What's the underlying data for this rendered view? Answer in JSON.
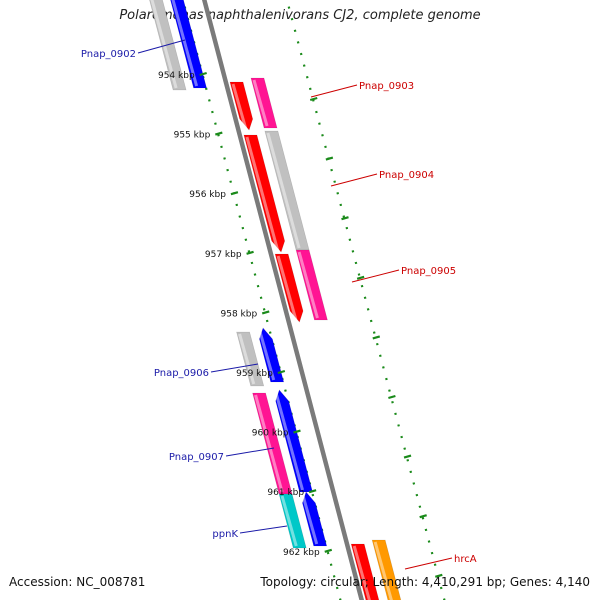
{
  "title": "Polaromonas naphthalenivorans CJ2, complete genome",
  "accession": "Accession: NC_008781",
  "summary": "Topology: circular; Length: 4,410,291 bp; Genes: 4,140",
  "colors": {
    "backbone": "#7a7a7a",
    "scale": "#1a8a1a",
    "label_left": "#1a1aa8",
    "label_right": "#cc0000",
    "red": "#ff0000",
    "pink": "#ff1493",
    "gray": "#c0c0c0",
    "blue": "#0000ff",
    "cyan": "#00c8c8",
    "orange": "#ff9900"
  },
  "ticks": [
    "954 kbp",
    "955 kbp",
    "956 kbp",
    "957 kbp",
    "958 kbp",
    "959 kbp",
    "960 kbp",
    "961 kbp",
    "962 kbp"
  ],
  "labels_left": [
    "Pnap_0902",
    "Pnap_0906",
    "Pnap_0907",
    "ppnK"
  ],
  "labels_right": [
    "Pnap_0903",
    "Pnap_0904",
    "Pnap_0905",
    "hrcA"
  ],
  "genes": [
    {
      "color": "gray",
      "track": "left_outer",
      "strand": "none"
    },
    {
      "color": "blue",
      "track": "left_inner",
      "strand": "none"
    },
    {
      "color": "red",
      "track": "right_inner",
      "strand": "reverse"
    },
    {
      "color": "pink",
      "track": "right_outer",
      "strand": "none"
    },
    {
      "color": "red",
      "track": "right_inner",
      "strand": "reverse"
    },
    {
      "color": "gray",
      "track": "right_outer",
      "strand": "none"
    },
    {
      "color": "red",
      "track": "right_inner",
      "strand": "reverse"
    },
    {
      "color": "pink",
      "track": "right_outer",
      "strand": "none"
    },
    {
      "color": "gray",
      "track": "left_outer",
      "strand": "none"
    },
    {
      "color": "blue",
      "track": "left_inner",
      "strand": "forward"
    },
    {
      "color": "pink",
      "track": "left_outer",
      "strand": "none"
    },
    {
      "color": "blue",
      "track": "left_inner",
      "strand": "forward"
    },
    {
      "color": "cyan",
      "track": "left_outer",
      "strand": "none"
    },
    {
      "color": "blue",
      "track": "left_inner",
      "strand": "forward"
    },
    {
      "color": "red",
      "track": "right_inner",
      "strand": "none"
    },
    {
      "color": "orange",
      "track": "right_outer",
      "strand": "none"
    }
  ]
}
